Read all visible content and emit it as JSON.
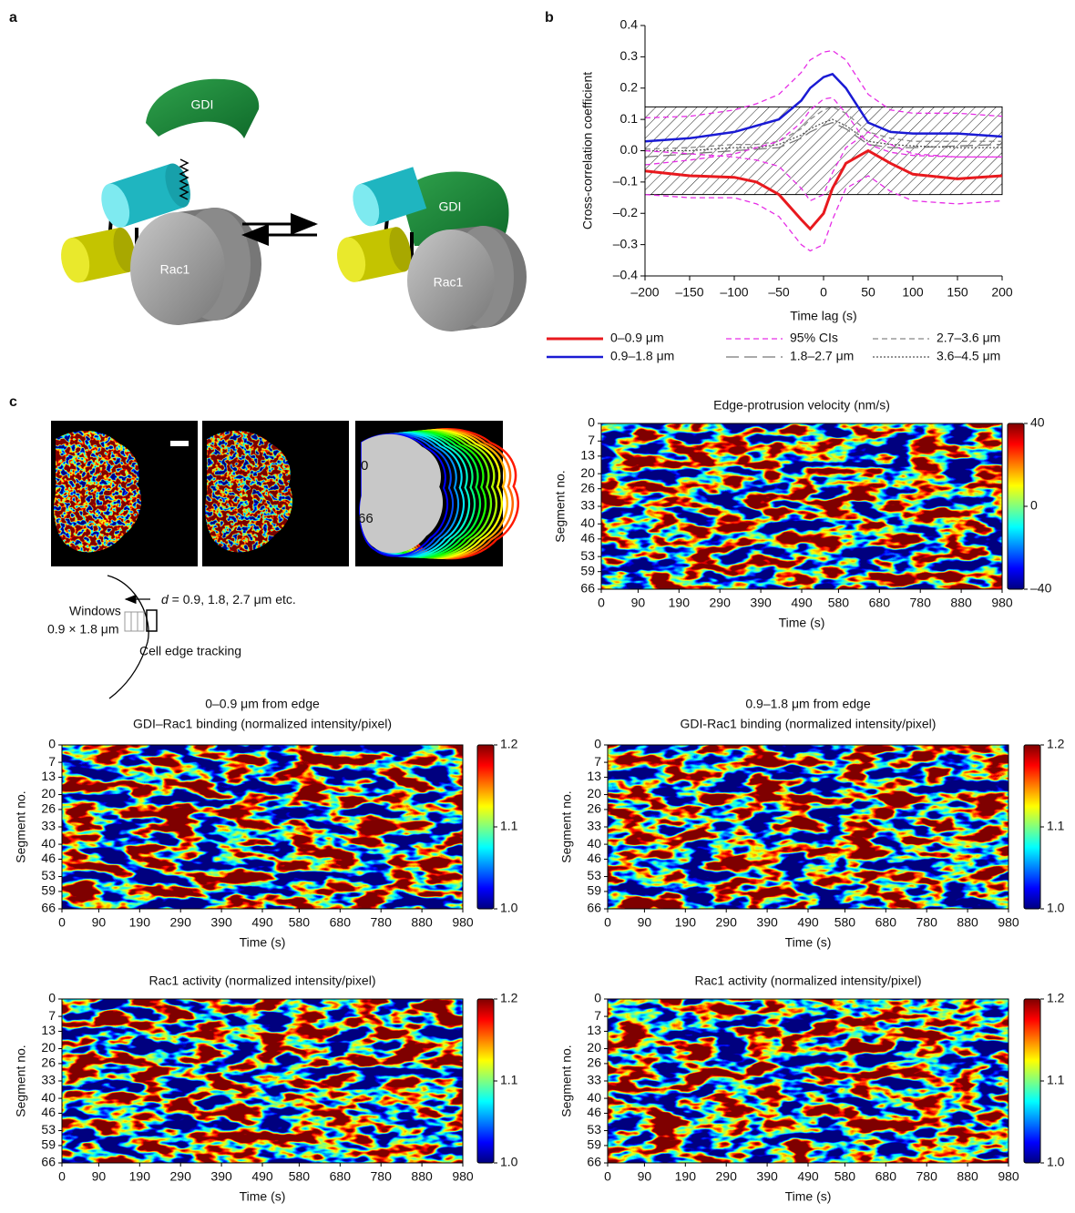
{
  "panel_labels": [
    "a",
    "b",
    "c"
  ],
  "diagram_a": {
    "labels": [
      "GDI",
      "Rac1",
      "GDI",
      "Rac1"
    ]
  },
  "diagram_c": {
    "time_start": "0",
    "time_end": "66",
    "windows": "Windows",
    "window_size": "0.9 × 1.8 μm",
    "distance_symbol": "d",
    "distance_text": " = 0.9, 1.8, 2.7 μm etc.",
    "edge_tracking": "Cell edge tracking"
  },
  "chart_data": [
    {
      "type": "line",
      "xlabel": "Time lag (s)",
      "ylabel": "Cross-correlation coefficient",
      "x": [
        -200,
        -150,
        -100,
        -75,
        -50,
        -25,
        -15,
        0,
        10,
        25,
        50,
        75,
        100,
        150,
        200
      ],
      "xlim": [
        -200,
        200
      ],
      "xticks": [
        {
          "value": -200,
          "label": "–200"
        },
        {
          "value": -150,
          "label": "–150"
        },
        {
          "value": -100,
          "label": "–100"
        },
        {
          "value": -50,
          "label": "–50"
        },
        0,
        50,
        100,
        150,
        200
      ],
      "ylim": [
        -0.4,
        0.4
      ],
      "yticks": [
        {
          "value": -0.4,
          "label": "–0.4"
        },
        {
          "value": -0.3,
          "label": "–0.3"
        },
        {
          "value": -0.2,
          "label": "–0.2"
        },
        {
          "value": -0.1,
          "label": "–0.1"
        },
        {
          "value": 0,
          "label": "0.0"
        },
        0.1,
        0.2,
        0.3,
        0.4
      ],
      "band": [
        -0.14,
        0.14
      ],
      "series": [
        {
          "name": "0–0.9 μm",
          "color": "#e8191e",
          "dash": "solid",
          "width": 3,
          "values": [
            -0.065,
            -0.08,
            -0.085,
            -0.1,
            -0.14,
            -0.22,
            -0.25,
            -0.2,
            -0.12,
            -0.04,
            0.0,
            -0.04,
            -0.075,
            -0.09,
            -0.08
          ]
        },
        {
          "name": "0.9–1.8 μm",
          "color": "#1a1ad4",
          "dash": "solid",
          "width": 2.5,
          "values": [
            0.03,
            0.04,
            0.06,
            0.08,
            0.1,
            0.16,
            0.2,
            0.235,
            0.245,
            0.2,
            0.09,
            0.06,
            0.055,
            0.055,
            0.045
          ]
        },
        {
          "name": "95% CIs",
          "color": "#e62ee6",
          "dash": "dashed",
          "width": 1.3,
          "values": [
            0.105,
            0.11,
            0.13,
            0.15,
            0.18,
            0.25,
            0.29,
            0.315,
            0.32,
            0.29,
            0.18,
            0.13,
            0.12,
            0.12,
            0.11
          ]
        },
        {
          "name": "1.8–2.7 μm",
          "color": "#777777",
          "dash": "long-dashed",
          "width": 1.3,
          "values": [
            -0.02,
            -0.01,
            0.0,
            0.005,
            0.01,
            0.04,
            0.06,
            0.08,
            0.09,
            0.07,
            0.02,
            0.01,
            0.01,
            0.015,
            0.02
          ]
        },
        {
          "name": "2.7–3.6 μm",
          "color": "#888888",
          "dash": "dashed",
          "width": 1.3,
          "values": [
            0.005,
            0.01,
            0.02,
            0.02,
            0.03,
            0.07,
            0.1,
            0.13,
            0.14,
            0.12,
            0.06,
            0.04,
            0.03,
            0.03,
            0.03
          ]
        },
        {
          "name": "3.6–4.5 μm",
          "color": "#555555",
          "dash": "dotted",
          "width": 1.3,
          "values": [
            0.0,
            0.0,
            0.01,
            0.01,
            0.02,
            0.05,
            0.07,
            0.09,
            0.1,
            0.08,
            0.03,
            0.02,
            0.015,
            0.01,
            0.01
          ]
        },
        {
          "color": "#e62ee6",
          "dash": "dashed",
          "width": 1.3,
          "values": [
            -0.045,
            -0.03,
            -0.01,
            0.01,
            0.03,
            0.09,
            0.13,
            0.165,
            0.17,
            0.12,
            0.02,
            -0.005,
            -0.015,
            -0.02,
            -0.02
          ]
        },
        {
          "color": "#e62ee6",
          "dash": "dashed",
          "width": 1.3,
          "values": [
            0.0,
            -0.01,
            -0.02,
            -0.03,
            -0.05,
            -0.12,
            -0.16,
            -0.14,
            -0.07,
            0.01,
            0.06,
            0.02,
            -0.01,
            -0.02,
            -0.02
          ]
        },
        {
          "color": "#e62ee6",
          "dash": "dashed",
          "width": 1.3,
          "values": [
            -0.14,
            -0.15,
            -0.15,
            -0.17,
            -0.21,
            -0.3,
            -0.32,
            -0.3,
            -0.22,
            -0.12,
            -0.08,
            -0.13,
            -0.16,
            -0.17,
            -0.16
          ]
        }
      ]
    },
    {
      "type": "heatmap",
      "title": "Edge-protrusion velocity (nm/s)",
      "xlabel": "Time (s)",
      "ylabel": "Segment no.",
      "xlim": [
        0,
        980
      ],
      "xticks": [
        0,
        90,
        190,
        290,
        390,
        490,
        580,
        680,
        780,
        880,
        980
      ],
      "ylim": [
        0,
        66
      ],
      "yticks": [
        0,
        7,
        13,
        20,
        26,
        33,
        40,
        46,
        53,
        59,
        66
      ],
      "yreversed": true,
      "colormap": "jet",
      "clim": [
        -40,
        40
      ],
      "cticks": [
        {
          "value": -40,
          "label": "–40"
        },
        0,
        40
      ]
    },
    {
      "type": "heatmap",
      "title": "0–0.9 μm from edge",
      "subtitle": "GDI–Rac1 binding (normalized intensity/pixel)",
      "xlabel": "Time (s)",
      "ylabel": "Segment no.",
      "xlim": [
        0,
        980
      ],
      "xticks": [
        0,
        90,
        190,
        290,
        390,
        490,
        580,
        680,
        780,
        880,
        980
      ],
      "ylim": [
        0,
        66
      ],
      "yticks": [
        0,
        7,
        13,
        20,
        26,
        33,
        40,
        46,
        53,
        59,
        66
      ],
      "yreversed": true,
      "colormap": "jet",
      "clim": [
        1.0,
        1.2
      ],
      "cticks": [
        {
          "value": 1.0,
          "label": "1.0"
        },
        1.1,
        1.2
      ]
    },
    {
      "type": "heatmap",
      "title": "0.9–1.8 μm from edge",
      "subtitle": "GDI-Rac1 binding (normalized intensity/pixel)",
      "xlabel": "Time (s)",
      "ylabel": "Segment no.",
      "xlim": [
        0,
        980
      ],
      "xticks": [
        0,
        90,
        190,
        290,
        390,
        490,
        580,
        680,
        780,
        880,
        980
      ],
      "ylim": [
        0,
        66
      ],
      "yticks": [
        0,
        7,
        13,
        20,
        26,
        33,
        40,
        46,
        53,
        59,
        66
      ],
      "yreversed": true,
      "colormap": "jet",
      "clim": [
        1.0,
        1.2
      ],
      "cticks": [
        {
          "value": 1.0,
          "label": "1.0"
        },
        1.1,
        1.2
      ]
    },
    {
      "type": "heatmap",
      "title": "Rac1 activity (normalized intensity/pixel)",
      "xlabel": "Time (s)",
      "ylabel": "Segment no.",
      "xlim": [
        0,
        980
      ],
      "xticks": [
        0,
        90,
        190,
        290,
        390,
        490,
        580,
        680,
        780,
        880,
        980
      ],
      "ylim": [
        0,
        66
      ],
      "yticks": [
        0,
        7,
        13,
        20,
        26,
        33,
        40,
        46,
        53,
        59,
        66
      ],
      "yreversed": true,
      "colormap": "jet",
      "clim": [
        1.0,
        1.2
      ],
      "cticks": [
        {
          "value": 1.0,
          "label": "1.0"
        },
        1.1,
        1.2
      ]
    },
    {
      "type": "heatmap",
      "title": "Rac1 activity (normalized intensity/pixel)",
      "xlabel": "Time (s)",
      "ylabel": "Segment no.",
      "xlim": [
        0,
        980
      ],
      "xticks": [
        0,
        90,
        190,
        290,
        390,
        490,
        580,
        680,
        780,
        880,
        980
      ],
      "ylim": [
        0,
        66
      ],
      "yticks": [
        0,
        7,
        13,
        20,
        26,
        33,
        40,
        46,
        53,
        59,
        66
      ],
      "yreversed": true,
      "colormap": "jet",
      "clim": [
        1.0,
        1.2
      ],
      "cticks": [
        {
          "value": 1.0,
          "label": "1.0"
        },
        1.1,
        1.2
      ]
    }
  ]
}
